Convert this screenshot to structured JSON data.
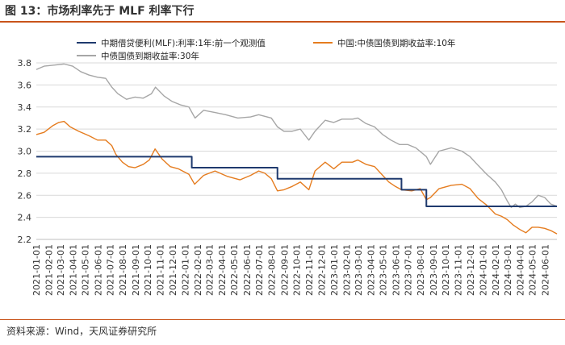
{
  "figure": {
    "title": "图 13：市场利率先于 MLF 利率下行",
    "source": "资料来源：Wind，天风证券研究所"
  },
  "colors": {
    "mlf": "#1f3a6e",
    "cgb10": "#e57c1f",
    "cgb30": "#a6a6a6",
    "rule": "#c9541a"
  },
  "chart_data": {
    "type": "line",
    "ylim": [
      2.2,
      3.8
    ],
    "yticks": [
      2.2,
      2.4,
      2.6,
      2.8,
      3.0,
      3.2,
      3.4,
      3.6,
      3.8
    ],
    "xlim": [
      "2021-01-01",
      "2024-06-30"
    ],
    "xticks": [
      "2021-01-01",
      "2021-02-01",
      "2021-03-01",
      "2021-04-01",
      "2021-05-01",
      "2021-06-01",
      "2021-07-01",
      "2021-08-01",
      "2021-09-01",
      "2021-10-01",
      "2021-11-01",
      "2021-12-01",
      "2022-01-01",
      "2022-02-01",
      "2022-03-01",
      "2022-04-01",
      "2022-05-01",
      "2022-06-01",
      "2022-07-01",
      "2022-08-01",
      "2022-09-01",
      "2022-10-01",
      "2022-11-01",
      "2022-12-01",
      "2023-01-01",
      "2023-02-01",
      "2023-03-01",
      "2023-04-01",
      "2023-05-01",
      "2023-06-01",
      "2023-07-01",
      "2023-08-01",
      "2023-09-01",
      "2023-10-01",
      "2023-11-01",
      "2023-12-01",
      "2024-01-01",
      "2024-02-01",
      "2024-03-01",
      "2024-04-01",
      "2024-05-01",
      "2024-06-01"
    ],
    "grid": "horizontal",
    "legend": "top",
    "series": [
      {
        "name": "中期借贷便利(MLF):利率:1年:前一个观测值",
        "type": "step",
        "points": [
          [
            "2021-01-01",
            2.95
          ],
          [
            "2022-01-17",
            2.85
          ],
          [
            "2022-08-15",
            2.75
          ],
          [
            "2023-06-15",
            2.65
          ],
          [
            "2023-08-15",
            2.5
          ],
          [
            "2024-06-30",
            2.5
          ]
        ]
      },
      {
        "name": "中国:中债国债到期收益率:10年",
        "points": [
          [
            "2021-01-01",
            3.15
          ],
          [
            "2021-01-20",
            3.17
          ],
          [
            "2021-02-10",
            3.23
          ],
          [
            "2021-02-25",
            3.26
          ],
          [
            "2021-03-10",
            3.27
          ],
          [
            "2021-03-25",
            3.22
          ],
          [
            "2021-04-15",
            3.18
          ],
          [
            "2021-05-10",
            3.14
          ],
          [
            "2021-05-31",
            3.1
          ],
          [
            "2021-06-20",
            3.1
          ],
          [
            "2021-07-05",
            3.05
          ],
          [
            "2021-07-15",
            2.97
          ],
          [
            "2021-07-31",
            2.9
          ],
          [
            "2021-08-15",
            2.86
          ],
          [
            "2021-08-31",
            2.85
          ],
          [
            "2021-09-20",
            2.88
          ],
          [
            "2021-10-05",
            2.92
          ],
          [
            "2021-10-19",
            3.02
          ],
          [
            "2021-11-05",
            2.93
          ],
          [
            "2021-11-25",
            2.86
          ],
          [
            "2021-12-15",
            2.84
          ],
          [
            "2022-01-10",
            2.79
          ],
          [
            "2022-01-24",
            2.7
          ],
          [
            "2022-02-15",
            2.78
          ],
          [
            "2022-03-15",
            2.82
          ],
          [
            "2022-04-15",
            2.77
          ],
          [
            "2022-05-15",
            2.74
          ],
          [
            "2022-06-10",
            2.78
          ],
          [
            "2022-06-30",
            2.82
          ],
          [
            "2022-07-15",
            2.8
          ],
          [
            "2022-07-31",
            2.75
          ],
          [
            "2022-08-15",
            2.64
          ],
          [
            "2022-08-31",
            2.65
          ],
          [
            "2022-09-20",
            2.68
          ],
          [
            "2022-10-10",
            2.72
          ],
          [
            "2022-10-31",
            2.65
          ],
          [
            "2022-11-15",
            2.82
          ],
          [
            "2022-12-10",
            2.9
          ],
          [
            "2022-12-31",
            2.84
          ],
          [
            "2023-01-20",
            2.9
          ],
          [
            "2023-02-15",
            2.9
          ],
          [
            "2023-02-28",
            2.92
          ],
          [
            "2023-03-20",
            2.88
          ],
          [
            "2023-04-10",
            2.86
          ],
          [
            "2023-04-30",
            2.78
          ],
          [
            "2023-05-15",
            2.72
          ],
          [
            "2023-05-31",
            2.68
          ],
          [
            "2023-06-15",
            2.65
          ],
          [
            "2023-07-10",
            2.64
          ],
          [
            "2023-07-31",
            2.66
          ],
          [
            "2023-08-15",
            2.56
          ],
          [
            "2023-08-25",
            2.58
          ],
          [
            "2023-09-15",
            2.66
          ],
          [
            "2023-10-15",
            2.69
          ],
          [
            "2023-11-10",
            2.7
          ],
          [
            "2023-11-30",
            2.66
          ],
          [
            "2023-12-20",
            2.57
          ],
          [
            "2024-01-10",
            2.51
          ],
          [
            "2024-01-31",
            2.43
          ],
          [
            "2024-02-15",
            2.41
          ],
          [
            "2024-02-29",
            2.38
          ],
          [
            "2024-03-15",
            2.33
          ],
          [
            "2024-03-31",
            2.29
          ],
          [
            "2024-04-15",
            2.26
          ],
          [
            "2024-04-30",
            2.31
          ],
          [
            "2024-05-15",
            2.31
          ],
          [
            "2024-05-31",
            2.3
          ],
          [
            "2024-06-15",
            2.28
          ],
          [
            "2024-06-30",
            2.25
          ]
        ]
      },
      {
        "name": "中债国债到期收益率:30年",
        "points": [
          [
            "2021-01-01",
            3.74
          ],
          [
            "2021-01-20",
            3.77
          ],
          [
            "2021-02-15",
            3.78
          ],
          [
            "2021-03-10",
            3.79
          ],
          [
            "2021-03-31",
            3.77
          ],
          [
            "2021-04-20",
            3.72
          ],
          [
            "2021-05-10",
            3.69
          ],
          [
            "2021-05-31",
            3.67
          ],
          [
            "2021-06-20",
            3.66
          ],
          [
            "2021-07-05",
            3.58
          ],
          [
            "2021-07-20",
            3.52
          ],
          [
            "2021-08-10",
            3.47
          ],
          [
            "2021-08-31",
            3.49
          ],
          [
            "2021-09-20",
            3.48
          ],
          [
            "2021-10-10",
            3.52
          ],
          [
            "2021-10-20",
            3.58
          ],
          [
            "2021-11-10",
            3.5
          ],
          [
            "2021-11-30",
            3.45
          ],
          [
            "2021-12-20",
            3.42
          ],
          [
            "2022-01-10",
            3.4
          ],
          [
            "2022-01-25",
            3.3
          ],
          [
            "2022-02-15",
            3.37
          ],
          [
            "2022-03-15",
            3.35
          ],
          [
            "2022-04-10",
            3.33
          ],
          [
            "2022-05-10",
            3.3
          ],
          [
            "2022-06-10",
            3.31
          ],
          [
            "2022-06-30",
            3.33
          ],
          [
            "2022-07-31",
            3.3
          ],
          [
            "2022-08-15",
            3.22
          ],
          [
            "2022-08-31",
            3.18
          ],
          [
            "2022-09-20",
            3.18
          ],
          [
            "2022-10-10",
            3.2
          ],
          [
            "2022-10-31",
            3.1
          ],
          [
            "2022-11-15",
            3.18
          ],
          [
            "2022-12-10",
            3.28
          ],
          [
            "2022-12-31",
            3.26
          ],
          [
            "2023-01-20",
            3.29
          ],
          [
            "2023-02-15",
            3.29
          ],
          [
            "2023-02-28",
            3.3
          ],
          [
            "2023-03-20",
            3.25
          ],
          [
            "2023-04-10",
            3.22
          ],
          [
            "2023-04-30",
            3.15
          ],
          [
            "2023-05-20",
            3.1
          ],
          [
            "2023-06-10",
            3.06
          ],
          [
            "2023-06-30",
            3.06
          ],
          [
            "2023-07-20",
            3.03
          ],
          [
            "2023-08-15",
            2.95
          ],
          [
            "2023-08-25",
            2.88
          ],
          [
            "2023-09-15",
            3.0
          ],
          [
            "2023-10-15",
            3.03
          ],
          [
            "2023-11-10",
            3.0
          ],
          [
            "2023-11-30",
            2.95
          ],
          [
            "2023-12-20",
            2.87
          ],
          [
            "2024-01-10",
            2.79
          ],
          [
            "2024-01-31",
            2.72
          ],
          [
            "2024-02-15",
            2.65
          ],
          [
            "2024-02-29",
            2.55
          ],
          [
            "2024-03-10",
            2.49
          ],
          [
            "2024-03-20",
            2.52
          ],
          [
            "2024-03-31",
            2.49
          ],
          [
            "2024-04-15",
            2.5
          ],
          [
            "2024-04-30",
            2.54
          ],
          [
            "2024-05-15",
            2.6
          ],
          [
            "2024-05-31",
            2.58
          ],
          [
            "2024-06-15",
            2.52
          ],
          [
            "2024-06-30",
            2.5
          ]
        ]
      }
    ]
  }
}
